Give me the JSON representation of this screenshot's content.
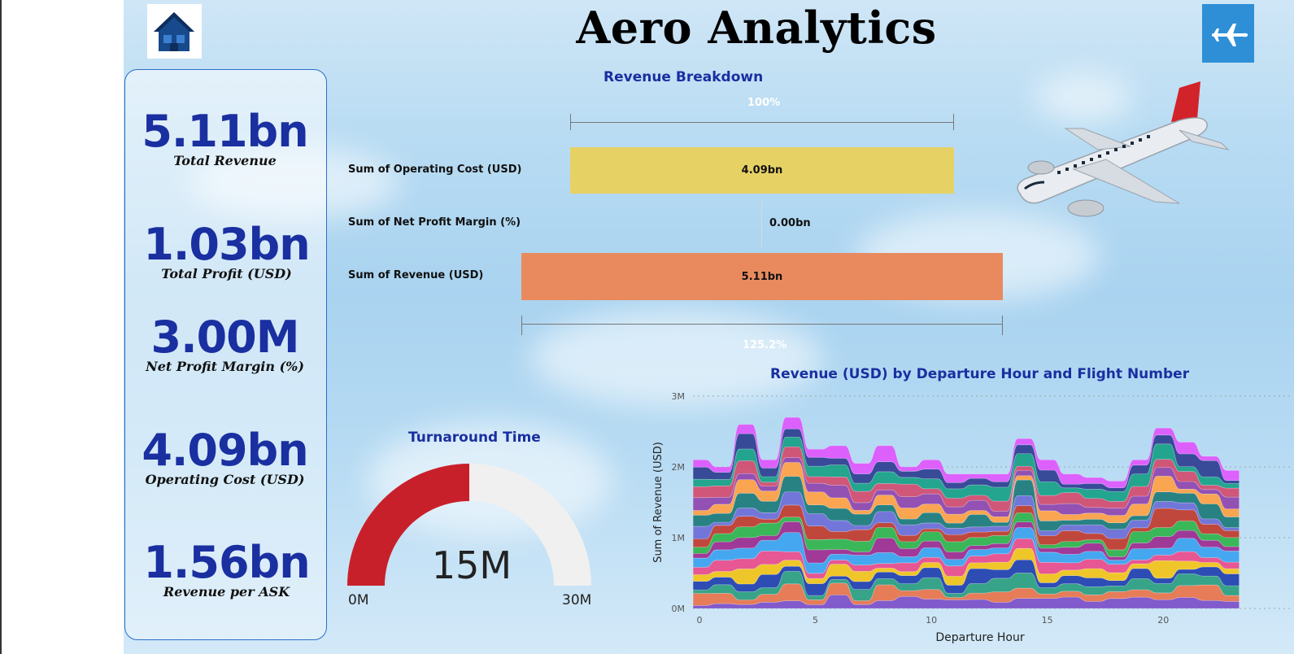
{
  "app": {
    "title": "Aero Analytics"
  },
  "nav": {
    "home_icon": "home-icon",
    "plane_icon": "airplane-icon"
  },
  "kpis": [
    {
      "value": "5.11bn",
      "label": "Total Revenue"
    },
    {
      "value": "1.03bn",
      "label": "Total Profit (USD)"
    },
    {
      "value": "3.00M",
      "label": "Net Profit Margin (%)"
    },
    {
      "value": "4.09bn",
      "label": "Operating Cost (USD)"
    },
    {
      "value": "1.56bn",
      "label": "Revenue per ASK"
    }
  ],
  "revenue_breakdown": {
    "title": "Revenue Breakdown",
    "top_pct": "100%",
    "bottom_pct": "125.2%",
    "rows": [
      {
        "label": "Sum of Operating Cost (USD)",
        "value": "4.09bn",
        "color": "#e6d165"
      },
      {
        "label": "Sum of Net Profit Margin (%)",
        "value": "0.00bn",
        "color": "#cccccc"
      },
      {
        "label": "Sum of Revenue (USD)",
        "value": "5.11bn",
        "color": "#e98a5e"
      }
    ]
  },
  "turnaround": {
    "title": "Turnaround Time",
    "value": "15M",
    "min_label": "0M",
    "max_label": "30M",
    "fraction": 0.5,
    "fill_color": "#c8202b",
    "track_color": "#f0f0f0"
  },
  "chart_data": {
    "type": "area",
    "title": "Revenue (USD) by Departure Hour and Flight Number",
    "xlabel": "Departure Hour",
    "ylabel": "Sum of Revenue (USD)",
    "x": [
      0,
      1,
      2,
      3,
      4,
      5,
      6,
      7,
      8,
      9,
      10,
      11,
      12,
      13,
      14,
      15,
      16,
      17,
      18,
      19,
      20,
      21,
      22,
      23
    ],
    "x_ticks": [
      "0",
      "5",
      "10",
      "15",
      "20"
    ],
    "y_ticks": [
      "0M",
      "1M",
      "2M",
      "3M"
    ],
    "ylim": [
      0,
      3000000
    ],
    "totals": [
      2100000,
      2000000,
      2600000,
      2100000,
      2700000,
      2250000,
      2300000,
      2050000,
      2300000,
      2000000,
      2100000,
      1900000,
      1900000,
      1900000,
      2400000,
      2100000,
      1900000,
      1850000,
      1800000,
      2100000,
      2550000,
      2350000,
      2150000,
      1950000
    ],
    "stack_layers": 18,
    "palette": [
      "#7b4fc8",
      "#e8734a",
      "#2a9d7f",
      "#1f3fae",
      "#f2c318",
      "#e84b8a",
      "#3aa2ef",
      "#9c2a8f",
      "#2fb34a",
      "#c0392b",
      "#6c6cd6",
      "#1b7a7a",
      "#ff9f43",
      "#8e44ad",
      "#d14b6e",
      "#16a085",
      "#2c3e90",
      "#e056fd"
    ]
  }
}
